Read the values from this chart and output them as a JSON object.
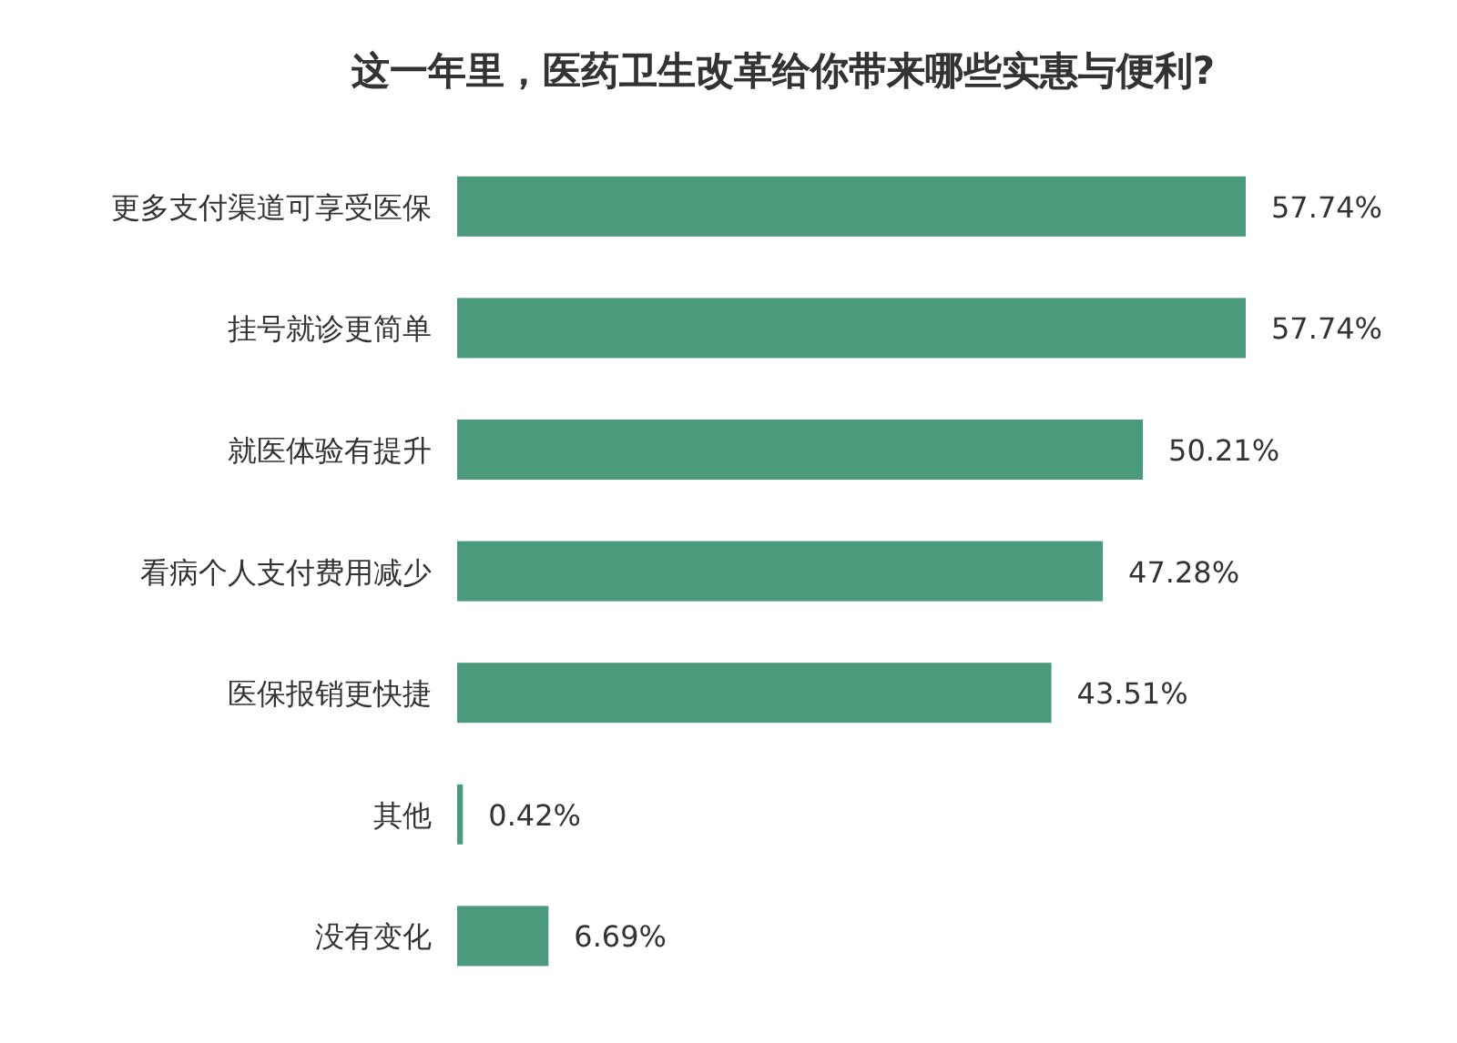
{
  "chart_data": {
    "type": "bar",
    "orientation": "horizontal",
    "title": "这一年里，医药卫生改革给你带来哪些实惠与便利?",
    "categories": [
      "更多支付渠道可享受医保",
      "挂号就诊更简单",
      "就医体验有提升",
      "看病个人支付费用减少",
      "医保报销更快捷",
      "其他",
      "没有变化"
    ],
    "values": [
      57.74,
      57.74,
      50.21,
      47.28,
      43.51,
      0.42,
      6.69
    ],
    "value_labels": [
      "57.74%",
      "57.74%",
      "50.21%",
      "47.28%",
      "43.51%",
      "0.42%",
      "6.69%"
    ],
    "color": "#4a9a7b"
  }
}
